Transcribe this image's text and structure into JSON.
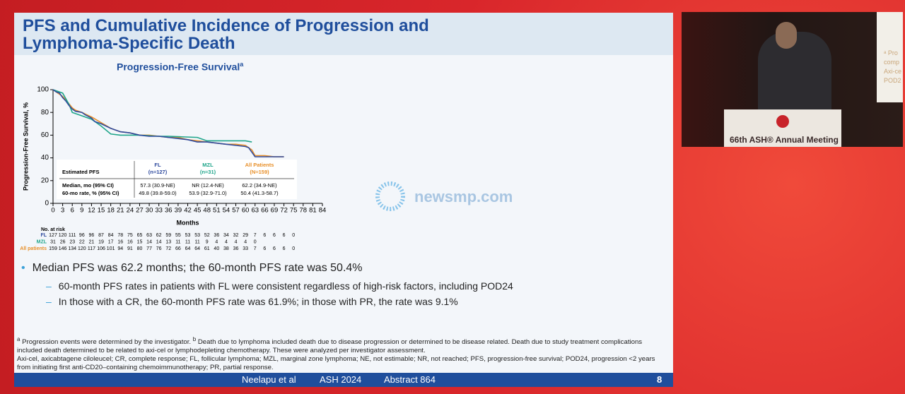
{
  "slide": {
    "title": "PFS and Cumulative Incidence of Progression and Lymphoma-Specific Death",
    "page": "8"
  },
  "chart_data": {
    "type": "line",
    "title": "Progression-Free Survival",
    "title_marker": "a",
    "x_label": "Months",
    "y_label": "Progression-Free Survival, %",
    "xlim": [
      0,
      84
    ],
    "xticks": [
      0,
      3,
      6,
      9,
      12,
      15,
      18,
      21,
      24,
      27,
      30,
      33,
      36,
      39,
      42,
      45,
      48,
      51,
      54,
      57,
      60,
      63,
      66,
      69,
      72,
      75,
      78,
      81,
      84
    ],
    "ylim": [
      0,
      100
    ],
    "yticks": [
      0,
      20,
      40,
      60,
      80,
      100
    ],
    "series": [
      {
        "name": "FL",
        "color": "#2e4a9e",
        "x": [
          0,
          1,
          2,
          3,
          4,
          5,
          6,
          7,
          9,
          10,
          12,
          13,
          15,
          18,
          21,
          24,
          27,
          30,
          33,
          36,
          39,
          42,
          45,
          48,
          51,
          54,
          57,
          60,
          61,
          62,
          63,
          66,
          69,
          72
        ],
        "values": [
          100,
          98,
          97,
          93,
          90,
          86,
          83,
          81,
          80,
          78,
          75,
          72,
          70,
          66,
          63,
          62,
          60,
          59,
          59,
          58,
          57,
          56,
          54,
          54,
          53,
          52,
          51,
          50,
          49,
          45,
          41,
          41,
          41,
          41
        ]
      },
      {
        "name": "MZL",
        "color": "#1fa58a",
        "x": [
          0,
          3,
          5,
          6,
          9,
          12,
          15,
          18,
          21,
          24,
          27,
          33,
          36,
          45,
          48,
          60,
          62
        ],
        "values": [
          100,
          97,
          87,
          80,
          77,
          74,
          68,
          61,
          60,
          60,
          60,
          59,
          59,
          58,
          55,
          55,
          54
        ]
      },
      {
        "name": "All patients",
        "color": "#e8902a",
        "x": [
          0,
          1,
          3,
          4,
          6,
          7,
          9,
          12,
          15,
          18,
          21,
          24,
          27,
          30,
          33,
          36,
          39,
          42,
          45,
          48,
          51,
          54,
          57,
          60,
          62,
          63,
          66,
          69,
          72
        ],
        "values": [
          100,
          98,
          94,
          91,
          84,
          82,
          80,
          76,
          71,
          66,
          63,
          62,
          60,
          60,
          59,
          58,
          58,
          56,
          55,
          54,
          53,
          52,
          52,
          51,
          47,
          42,
          42,
          41,
          41
        ]
      }
    ],
    "at_risk_title": "No. at risk",
    "at_risk": [
      [
        127,
        120,
        111,
        96,
        96,
        87,
        84,
        78,
        75,
        65,
        63,
        62,
        59,
        55,
        53,
        53,
        52,
        36,
        34,
        32,
        29,
        7,
        6,
        6,
        6,
        0
      ],
      [
        31,
        26,
        23,
        22,
        21,
        19,
        17,
        16,
        16,
        15,
        14,
        14,
        13,
        11,
        11,
        11,
        9,
        4,
        4,
        4,
        4,
        0
      ],
      [
        159,
        146,
        134,
        120,
        117,
        106,
        101,
        94,
        91,
        80,
        77,
        76,
        72,
        66,
        64,
        64,
        61,
        40,
        38,
        36,
        33,
        7,
        6,
        6,
        6,
        0
      ]
    ],
    "table": {
      "header": "Estimated PFS",
      "columns": [
        [
          "FL",
          "(n=127)"
        ],
        [
          "MZL",
          "(n=31)"
        ],
        [
          "All Patients",
          "(N=159)"
        ]
      ],
      "rows": [
        {
          "label": "Median, mo (95% CI)",
          "cells": [
            "57.3 (30.9-NE)",
            "NR (12.4-NE)",
            "62.2 (34.9-NE)"
          ]
        },
        {
          "label": "60-mo rate, % (95% CI)",
          "cells": [
            "49.8 (39.8-59.0)",
            "53.9 (32.9-71.0)",
            "50.4 (41.3-58.7)"
          ]
        }
      ]
    }
  },
  "bullets": [
    {
      "text": "Median PFS was 62.2 months; the 60-month PFS rate was 50.4%",
      "sub": [
        "60-month PFS rates in patients with FL were consistent regardless of high-risk factors, including POD24",
        "In those with a CR, the 60-month PFS rate was 61.9%; in those with PR, the rate was 9.1%"
      ]
    }
  ],
  "footnotes": {
    "notes": [
      {
        "marker": "a",
        "text": "Progression events were determined by the investigator."
      },
      {
        "marker": "b",
        "text": "Death due to lymphoma included death due to disease progression or determined to be disease related. Death due to study treatment complications included death determined to be related to axi-cel or lymphodepleting chemotherapy. These were analyzed per investigator assessment."
      }
    ],
    "abbreviations": "Axi-cel, axicabtagene ciloleucel; CR, complete response; FL, follicular lymphoma; MZL, marginal zone lymphoma; NE, not estimable; NR, not reached; PFS, progression-free survival; POD24, progression <2 years from initiating first anti-CD20–containing chemoimmunotherapy; PR, partial response."
  },
  "footer": [
    "Neelapu et al",
    "ASH 2024",
    "Abstract 864"
  ],
  "watermark": "newsmp.com",
  "video": {
    "podium": "66th ASH® Annual Meeting",
    "screen": [
      "ᵃ Pro",
      "comp",
      "Axi-ce",
      "POD2"
    ]
  }
}
